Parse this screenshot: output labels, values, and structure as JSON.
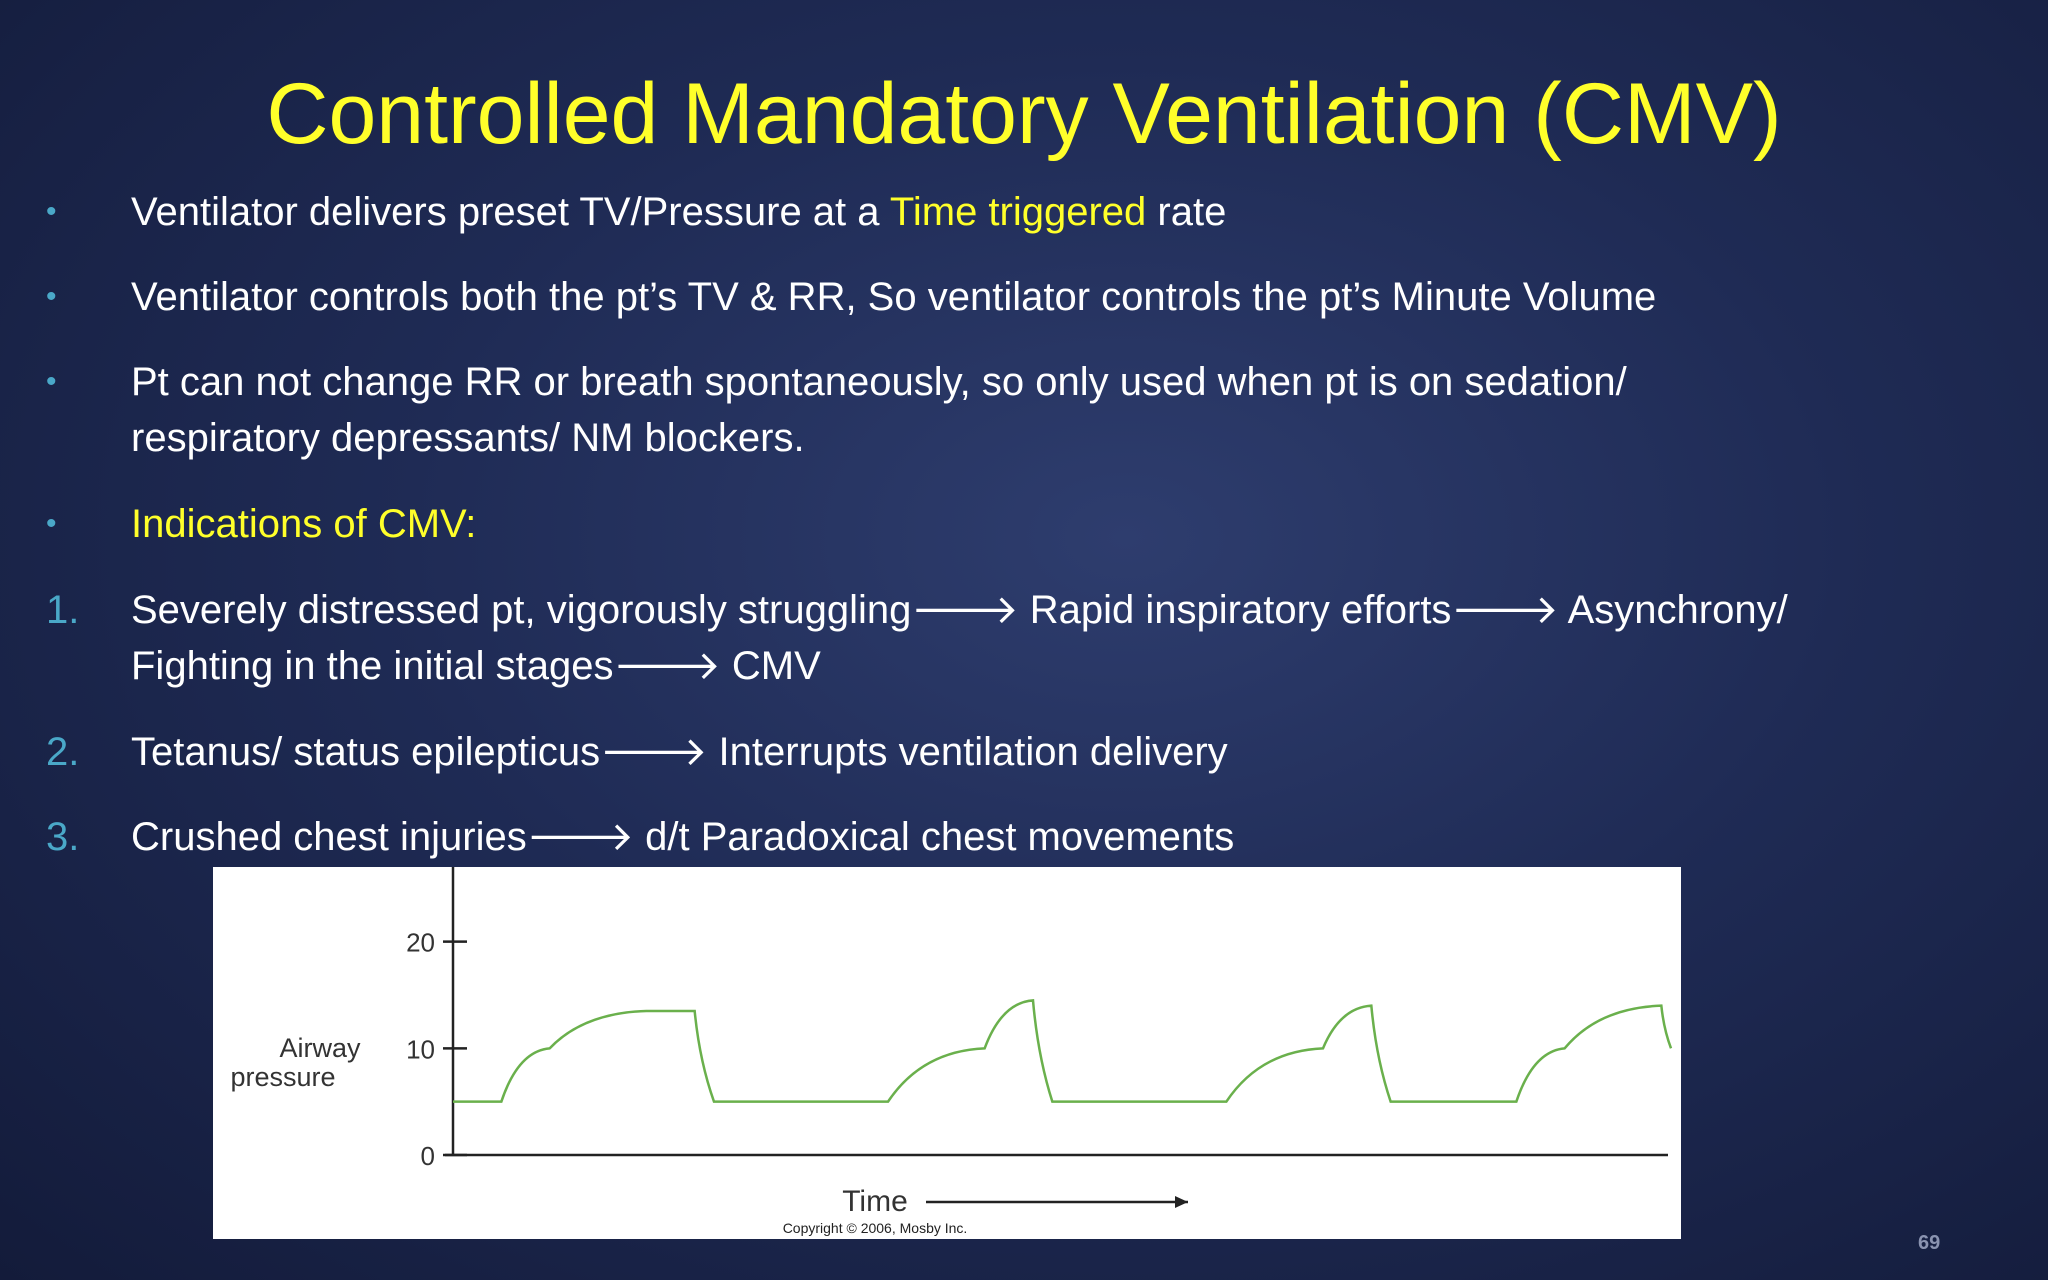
{
  "slide": {
    "title": "Controlled Mandatory Ventilation (CMV)",
    "page_number": "69"
  },
  "bullets": [
    {
      "marker": "•",
      "parts": [
        "Ventilator delivers preset TV/Pressure at a ",
        "Time triggered",
        " rate"
      ]
    },
    {
      "marker": "•",
      "line1": "Ventilator controls both the pt’s TV & RR, So ventilator controls the pt’s Minute Volume"
    },
    {
      "marker": "•",
      "line1": "Pt can not change RR or breath spontaneously, so only used when pt is on sedation/",
      "line2": "respiratory depressants/ NM blockers."
    },
    {
      "marker": "•",
      "line1": "Indications of CMV:"
    }
  ],
  "numbered": [
    {
      "marker": "1.",
      "line1": "Severely distressed pt, vigorously struggling🡒 Rapid inspiratory efforts🡒 Asynchrony/",
      "line2": "Fighting in the initial stages🡒 CMV"
    },
    {
      "marker": "2.",
      "line1": "Tetanus/ status epilepticus🡒 Interrupts ventilation delivery"
    },
    {
      "marker": "3.",
      "line1": "Crushed chest injuries🡒 d/t Paradoxical chest movements"
    }
  ],
  "figure": {
    "ylabel_line1": "Airway",
    "ylabel_line2": "pressure",
    "xlabel": "Time",
    "copyright": "Copyright © 2006, Mosby Inc.",
    "line_color": "#6ab04c"
  },
  "chart_data": {
    "type": "line",
    "xlabel": "Time",
    "ylabel": "Airway pressure",
    "yticks": [
      "0",
      "10",
      "20"
    ],
    "ylim": [
      0,
      27
    ],
    "x": [
      0,
      5,
      10,
      20,
      25,
      27,
      40,
      45,
      55,
      60,
      62,
      75,
      80,
      90,
      95,
      97,
      110,
      115,
      125,
      126
    ],
    "series": [
      {
        "values": [
          5,
          5,
          10,
          13.5,
          13.5,
          5,
          5,
          5,
          10,
          14.5,
          5,
          5,
          5,
          10,
          14,
          5,
          5,
          10,
          14,
          10
        ]
      }
    ],
    "grid": false
  }
}
